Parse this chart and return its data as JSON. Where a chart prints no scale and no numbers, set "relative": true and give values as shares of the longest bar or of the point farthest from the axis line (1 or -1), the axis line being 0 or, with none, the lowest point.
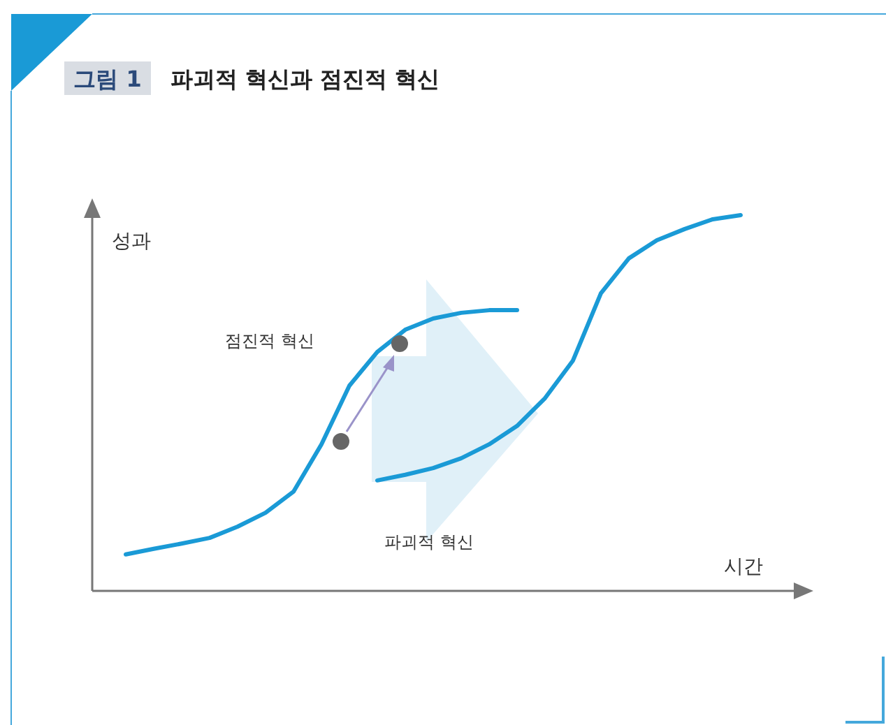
{
  "chart_data": {
    "type": "line",
    "title": "파괴적 혁신과 점진적 혁신",
    "xlabel": "시간",
    "ylabel": "성과",
    "relative": true,
    "marker": "none",
    "annotations": [
      "그림 1",
      "점진적 혁신",
      "파괴적 혁신"
    ],
    "categories": [
      null,
      null,
      null,
      null,
      null,
      null,
      null,
      null,
      null,
      null,
      null,
      null,
      null,
      null,
      null,
      null,
      null,
      null,
      null,
      null,
      null,
      null,
      null
    ],
    "series": [
      {
        "color": "#1a9ad6",
        "values": [
          0.097,
          0.112,
          0.126,
          0.141,
          0.171,
          0.208,
          0.264,
          0.39,
          0.546,
          0.636,
          0.695,
          0.725,
          0.74,
          0.747,
          0.747,
          null,
          null,
          null,
          null,
          null,
          null,
          null,
          null
        ]
      },
      {
        "color": "#1a9ad6",
        "values": [
          null,
          null,
          null,
          null,
          null,
          null,
          null,
          null,
          null,
          0.294,
          0.309,
          0.327,
          0.353,
          0.39,
          0.439,
          0.513,
          0.613,
          0.792,
          0.885,
          0.933,
          0.963,
          0.989,
          1
        ]
      }
    ]
  }
}
